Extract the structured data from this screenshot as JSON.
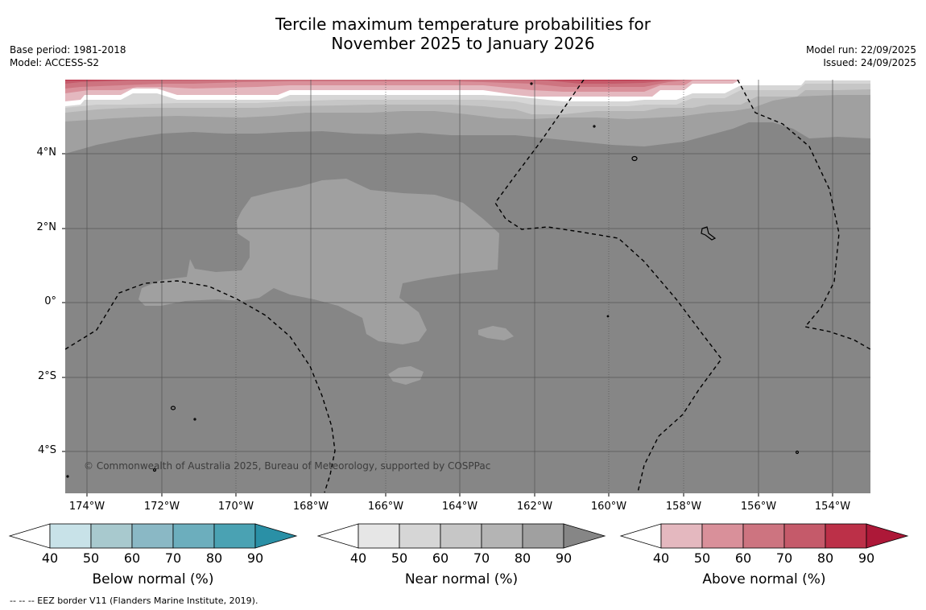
{
  "title": {
    "line1": "Tercile maximum temperature probabilities for",
    "line2": "November 2025 to January 2026"
  },
  "meta_left": {
    "base_period": "Base period: 1981-2018",
    "model": "Model: ACCESS-S2"
  },
  "meta_right": {
    "model_run": "Model run: 22/09/2025",
    "issued": "Issued: 24/09/2025"
  },
  "map": {
    "lat_labels": [
      "4°N",
      "2°N",
      "0°",
      "2°S",
      "4°S"
    ],
    "lon_labels": [
      "174°W",
      "172°W",
      "170°W",
      "168°W",
      "166°W",
      "164°W",
      "162°W",
      "160°W",
      "158°W",
      "156°W",
      "154°W"
    ],
    "copyright": "© Commonwealth of Australia 2025, Bureau of Meteorology, supported by COSPPac"
  },
  "colorbars": [
    {
      "title": "Below normal (%)",
      "ticks": [
        "40",
        "50",
        "60",
        "70",
        "80",
        "90"
      ],
      "colors": [
        "#ffffff",
        "#c8e2e8",
        "#a8c9ce",
        "#8ab8c5",
        "#6caebd",
        "#4aa2b3",
        "#2a90a6"
      ]
    },
    {
      "title": "Near normal (%)",
      "ticks": [
        "40",
        "50",
        "60",
        "70",
        "80",
        "90"
      ],
      "colors": [
        "#ffffff",
        "#e6e6e6",
        "#d6d6d6",
        "#c6c6c6",
        "#b4b4b4",
        "#a0a0a0",
        "#868686"
      ]
    },
    {
      "title": "Above normal (%)",
      "ticks": [
        "40",
        "50",
        "60",
        "70",
        "80",
        "90"
      ],
      "colors": [
        "#ffffff",
        "#e4b8bf",
        "#d9909a",
        "#cd7480",
        "#c55a6a",
        "#bc3048",
        "#ad1838"
      ]
    }
  ],
  "footnote": "--  --  -- EEZ border V11 (Flanders Marine Institute, 2019)."
}
